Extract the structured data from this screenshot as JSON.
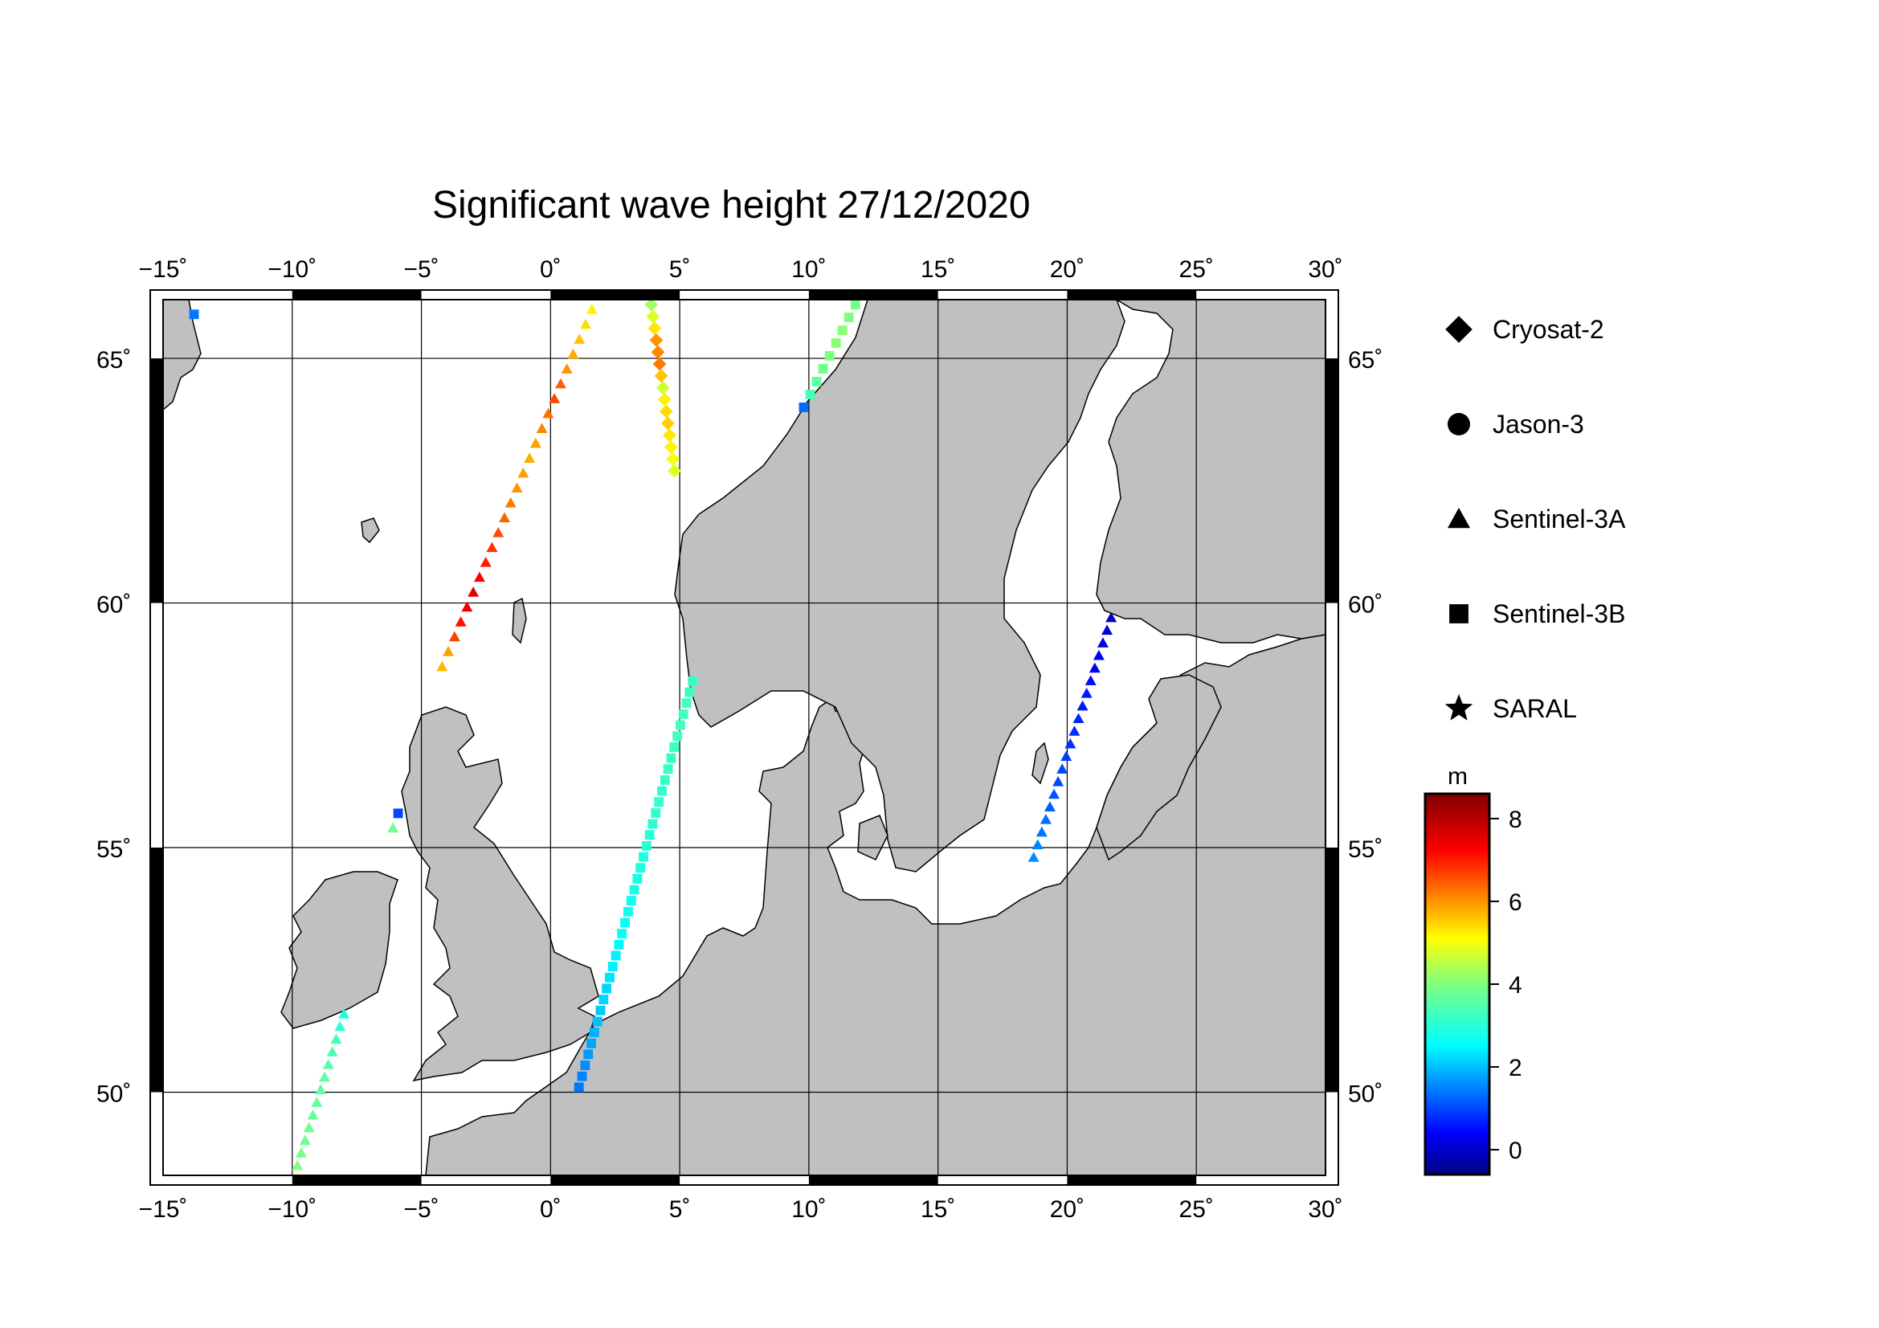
{
  "title": "Significant wave height 27/12/2020",
  "map": {
    "lon_range": [
      -15,
      30
    ],
    "lat_range": [
      48.3,
      66.2
    ],
    "lon_ticks": [
      "−15˚",
      "−10˚",
      "−5˚",
      "0˚",
      "5˚",
      "10˚",
      "15˚",
      "20˚",
      "25˚",
      "30˚"
    ],
    "lat_ticks": [
      "50˚",
      "55˚",
      "60˚",
      "65˚"
    ],
    "land_color": "#c0c0c0",
    "sea_color": "#ffffff"
  },
  "legend": {
    "items": [
      {
        "label": "Cryosat-2",
        "symbol": "diamond"
      },
      {
        "label": "Jason-3",
        "symbol": "circle"
      },
      {
        "label": "Sentinel-3A",
        "symbol": "triangle"
      },
      {
        "label": "Sentinel-3B",
        "symbol": "square"
      },
      {
        "label": "SARAL",
        "symbol": "star"
      }
    ]
  },
  "colorbar": {
    "unit": "m",
    "range": [
      -0.6,
      8.6
    ],
    "ticks": [
      "8",
      "6",
      "4",
      "2",
      "0"
    ],
    "tick_values": [
      8,
      6,
      4,
      2,
      0
    ]
  },
  "tracks": [
    {
      "satellite": "Sentinel-3A",
      "symbol": "triangle",
      "from": [
        -4.2,
        58.7
      ],
      "to": [
        1.6,
        66.0
      ],
      "hs": [
        5.7,
        5.9,
        6.7,
        7.1,
        7.4,
        7.5,
        7.3,
        7.0,
        6.8,
        6.6,
        6.4,
        6.2,
        6.0,
        5.9,
        5.8,
        5.9,
        6.1,
        6.3,
        6.6,
        6.4,
        6.0,
        5.8,
        5.6,
        5.4,
        5.2
      ]
    },
    {
      "satellite": "Cryosat-2",
      "symbol": "diamond",
      "from": [
        3.9,
        66.1
      ],
      "to": [
        4.8,
        62.7
      ],
      "hs": [
        4.3,
        4.8,
        5.3,
        6.0,
        6.1,
        6.2,
        5.6,
        4.7,
        5.2,
        5.4,
        5.5,
        5.3,
        5.2,
        5.0,
        4.8
      ]
    },
    {
      "satellite": "Sentinel-3B",
      "symbol": "square",
      "from": [
        9.8,
        64.0
      ],
      "to": [
        11.8,
        66.1
      ],
      "hs": [
        1.3,
        3.4,
        3.6,
        3.9,
        4.0,
        4.1,
        4.1,
        4.0,
        3.9
      ]
    },
    {
      "satellite": "Sentinel-3A",
      "symbol": "triangle",
      "from": [
        -9.8,
        48.5
      ],
      "to": [
        -8.0,
        51.6
      ],
      "hs": [
        4.0,
        3.9,
        3.8,
        3.8,
        3.7,
        3.7,
        3.6,
        3.6,
        3.5,
        3.4,
        3.3,
        3.1,
        2.8
      ]
    },
    {
      "satellite": "Sentinel-3A",
      "symbol": "triangle",
      "from": [
        -6.1,
        55.4
      ],
      "to": [
        -6.1,
        55.4
      ],
      "hs": [
        3.8
      ]
    },
    {
      "satellite": "Sentinel-3B",
      "symbol": "square",
      "from": [
        -5.9,
        55.7
      ],
      "to": [
        -5.9,
        55.7
      ],
      "hs": [
        1.0
      ]
    },
    {
      "satellite": "Sentinel-3B",
      "symbol": "square",
      "from": [
        -13.8,
        65.9
      ],
      "to": [
        -13.8,
        65.9
      ],
      "hs": [
        1.4
      ]
    },
    {
      "satellite": "Sentinel-3B",
      "symbol": "square",
      "from": [
        1.1,
        50.1
      ],
      "to": [
        5.5,
        58.4
      ],
      "hs": [
        1.4,
        1.5,
        1.6,
        1.7,
        1.8,
        1.9,
        2.0,
        2.1,
        2.2,
        2.2,
        2.3,
        2.4,
        2.4,
        2.5,
        2.6,
        2.6,
        2.7,
        2.7,
        2.8,
        2.8,
        2.9,
        2.9,
        3.0,
        3.0,
        3.0,
        3.1,
        3.1,
        3.1,
        3.2,
        3.2,
        3.2,
        3.2,
        3.3,
        3.3,
        3.3,
        3.3,
        3.2,
        3.2
      ]
    },
    {
      "satellite": "Sentinel-3A",
      "symbol": "triangle",
      "from": [
        18.7,
        54.8
      ],
      "to": [
        21.7,
        59.7
      ],
      "hs": [
        1.6,
        1.5,
        1.4,
        1.3,
        1.2,
        1.1,
        1.0,
        1.0,
        0.9,
        0.8,
        0.8,
        0.7,
        0.6,
        0.6,
        0.5,
        0.4,
        0.3,
        0.2,
        0.1,
        -0.1
      ]
    }
  ]
}
